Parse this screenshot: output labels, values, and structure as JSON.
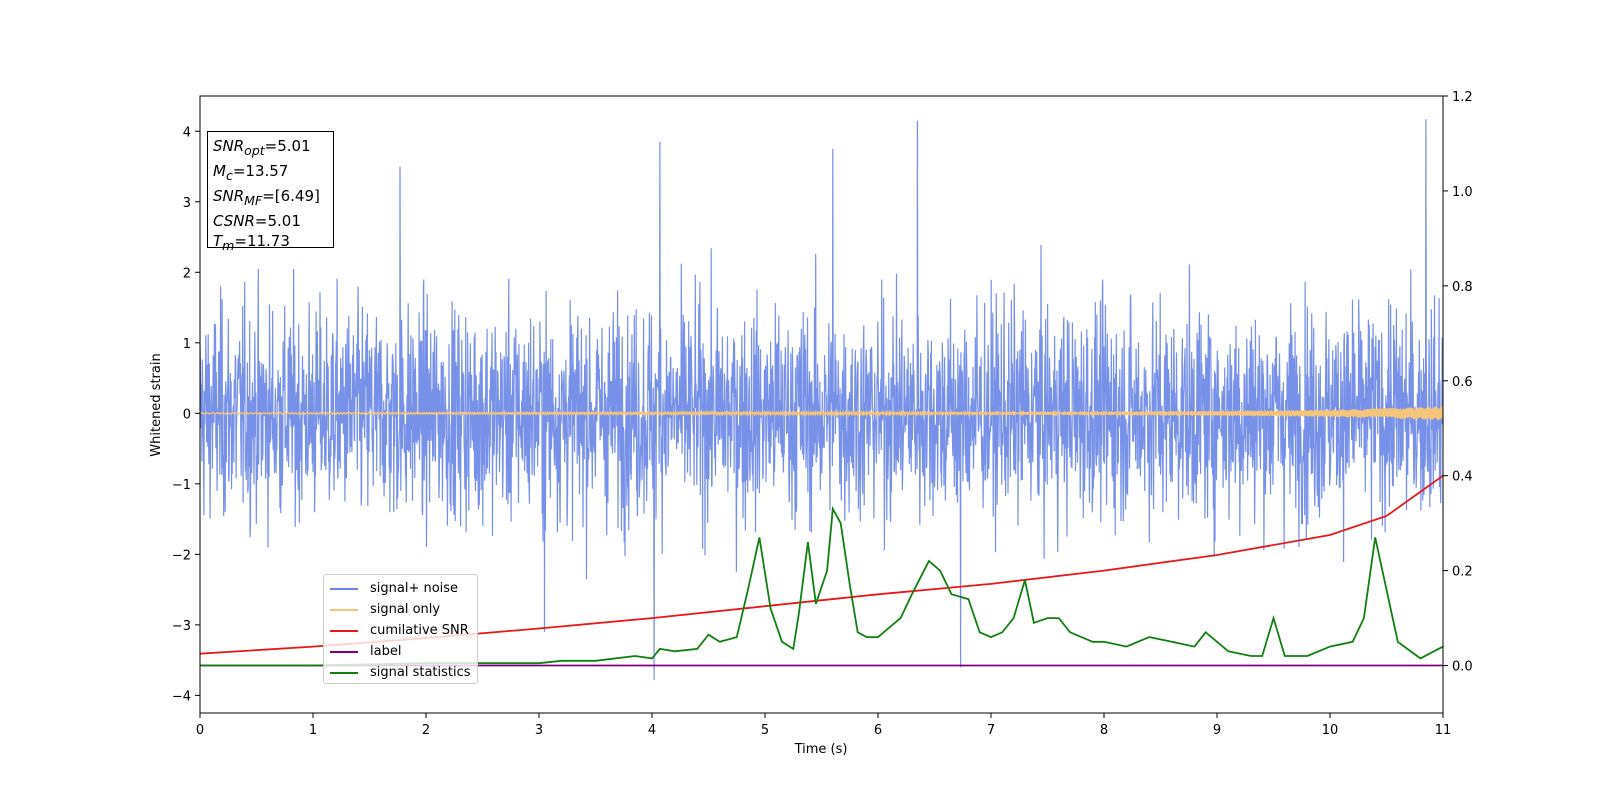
{
  "chart_data": {
    "type": "line",
    "xlabel": "Time (s)",
    "ylabel": "Whitened strain",
    "xlim": [
      0,
      11
    ],
    "ylim": [
      -4.25,
      4.5
    ],
    "y2lim": [
      -0.1,
      1.2
    ],
    "x_ticks": [
      "0",
      "1",
      "2",
      "3",
      "4",
      "5",
      "6",
      "7",
      "8",
      "9",
      "10",
      "11"
    ],
    "y_ticks": [
      "−4",
      "−3",
      "−2",
      "−1",
      "0",
      "1",
      "2",
      "3",
      "4"
    ],
    "y2_ticks": [
      "0.0",
      "0.2",
      "0.4",
      "0.6",
      "0.8",
      "1.0",
      "1.2"
    ],
    "grid": false,
    "legend_position": "lower-left",
    "annotation": {
      "snr_opt": "5.01",
      "mc": "13.57",
      "snr_mf": "[6.49]",
      "csnr": "5.01",
      "tm": "11.73"
    },
    "series": [
      {
        "name": "signal+ noise",
        "color": "#6b88e6",
        "axis": "left",
        "description_values": "noise band approx mean 0, envelope about -2.5 to 2.5, peaks up to 4.2 and down to -3.8",
        "peaks": [
          [
            4.07,
            3.85
          ],
          [
            5.6,
            3.75
          ],
          [
            6.35,
            4.15
          ],
          [
            10.85,
            4.17
          ],
          [
            1.77,
            3.5
          ],
          [
            3.05,
            -3.1
          ],
          [
            4.02,
            -3.78
          ],
          [
            6.73,
            -3.6
          ]
        ]
      },
      {
        "name": "signal only",
        "color": "#f5c57a",
        "axis": "left",
        "x": [
          0,
          6,
          8,
          9,
          10,
          10.5,
          11
        ],
        "amplitude": [
          0.01,
          0.015,
          0.025,
          0.035,
          0.05,
          0.07,
          0.1
        ]
      },
      {
        "name": "cumilative SNR",
        "color": "#e8191b",
        "axis": "right",
        "x": [
          0,
          1,
          2,
          3,
          4,
          5,
          6,
          7,
          8,
          9,
          10,
          10.5,
          11
        ],
        "y": [
          0.025,
          0.04,
          0.058,
          0.078,
          0.1,
          0.125,
          0.15,
          0.172,
          0.2,
          0.233,
          0.275,
          0.315,
          0.4
        ]
      },
      {
        "name": "label",
        "color": "#800080",
        "axis": "right",
        "x": [
          0,
          11
        ],
        "y": [
          0.0,
          0.0
        ]
      },
      {
        "name": "signal statistics",
        "color": "#118011",
        "axis": "right",
        "x": [
          0,
          1,
          2,
          2.5,
          3,
          3.2,
          3.5,
          3.85,
          4,
          4.07,
          4.2,
          4.4,
          4.5,
          4.6,
          4.75,
          4.85,
          4.95,
          5.05,
          5.15,
          5.25,
          5.3,
          5.38,
          5.45,
          5.55,
          5.6,
          5.67,
          5.75,
          5.82,
          5.9,
          6.0,
          6.1,
          6.2,
          6.3,
          6.45,
          6.55,
          6.65,
          6.8,
          6.9,
          7.0,
          7.1,
          7.2,
          7.3,
          7.38,
          7.5,
          7.6,
          7.7,
          7.8,
          7.9,
          8.0,
          8.2,
          8.4,
          8.6,
          8.8,
          8.9,
          9.1,
          9.3,
          9.4,
          9.5,
          9.6,
          9.8,
          10.0,
          10.2,
          10.3,
          10.4,
          10.6,
          10.8,
          11.0
        ],
        "y": [
          0.0,
          0.0,
          0.005,
          0.005,
          0.005,
          0.01,
          0.01,
          0.02,
          0.015,
          0.035,
          0.03,
          0.035,
          0.065,
          0.05,
          0.06,
          0.16,
          0.27,
          0.12,
          0.05,
          0.035,
          0.11,
          0.26,
          0.13,
          0.2,
          0.33,
          0.3,
          0.17,
          0.07,
          0.06,
          0.06,
          0.08,
          0.1,
          0.15,
          0.22,
          0.2,
          0.15,
          0.14,
          0.07,
          0.06,
          0.07,
          0.1,
          0.18,
          0.09,
          0.1,
          0.1,
          0.07,
          0.06,
          0.05,
          0.05,
          0.04,
          0.06,
          0.05,
          0.04,
          0.07,
          0.03,
          0.02,
          0.02,
          0.1,
          0.02,
          0.02,
          0.04,
          0.05,
          0.1,
          0.27,
          0.05,
          0.015,
          0.04
        ]
      }
    ]
  }
}
